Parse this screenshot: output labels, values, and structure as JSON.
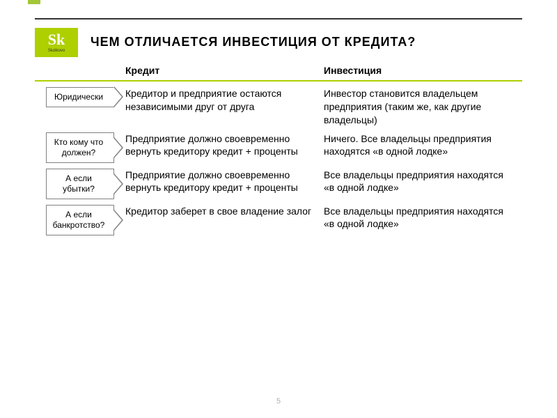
{
  "logo": {
    "sk": "Sk",
    "text": "Skolkovo"
  },
  "title": "ЧЕМ ОТЛИЧАЕТСЯ ИНВЕСТИЦИЯ ОТ КРЕДИТА?",
  "headers": {
    "credit": "Кредит",
    "investment": "Инвестиция"
  },
  "rows": [
    {
      "label": "Юридически",
      "credit": "Кредитор и предприятие остаются независимыми друг от друга",
      "invest": "Инвестор становится владельцем предприятия (таким же, как другие владельцы)"
    },
    {
      "label": "Кто кому что должен?",
      "credit": "Предприятие должно своевременно вернуть кредитору кредит + проценты",
      "invest": "Ничего. Все владельцы предприятия находятся «в одной лодке»"
    },
    {
      "label": "А если убытки?",
      "credit": "Предприятие должно своевременно вернуть кредитору кредит + проценты",
      "invest": "Все владельцы предприятия находятся «в одной лодке»"
    },
    {
      "label": "А если банкротство?",
      "credit": "Кредитор заберет в свое владение залог",
      "invest": "Все владельцы предприятия находятся «в одной лодке»"
    }
  ],
  "page_number": "5",
  "colors": {
    "accent": "#aecf00",
    "accent2": "#a4c639",
    "rule": "#333333",
    "border": "#808080",
    "pagenum": "#b0b0b0"
  },
  "font_sizes": {
    "title": 18,
    "header": 14,
    "body": 14,
    "label": 12
  }
}
